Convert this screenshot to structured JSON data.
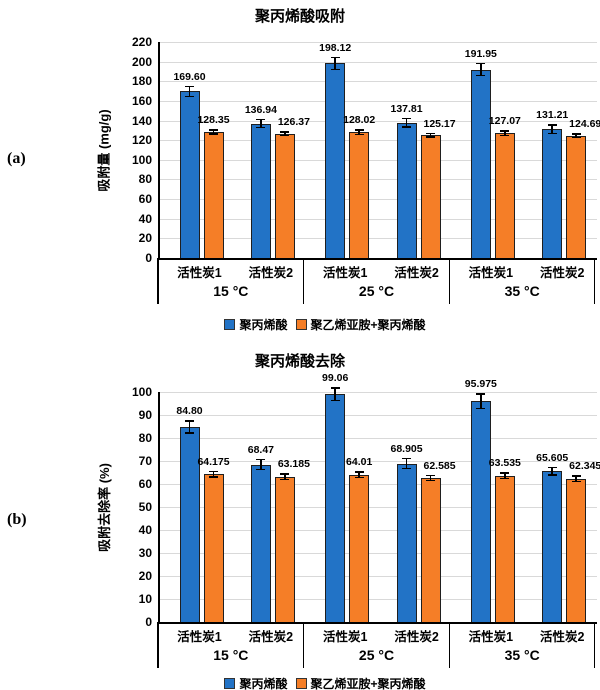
{
  "panel_labels": [
    "(a)",
    "(b)"
  ],
  "x_axis": {
    "temperature_groups": [
      "15 °C",
      "25 °C",
      "35 °C"
    ],
    "carbon_labels": [
      "活性炭1",
      "活性炭2"
    ]
  },
  "colors": {
    "blue_series": "#2273C6",
    "orange_series": "#F57E27",
    "bar_border": "#1f1f1f",
    "grid_line": "#d9d9d9",
    "axis_line": "#000000",
    "error_bar": "#000000"
  },
  "chart_data": [
    {
      "type": "bar",
      "title": "聚丙烯酸吸附",
      "ylabel": "吸附量 (mg/g)",
      "ylim": [
        0,
        220
      ],
      "ytick_step": 20,
      "grid": true,
      "legend_position": "bottom",
      "groups": [
        "15 °C",
        "25 °C",
        "35 °C"
      ],
      "group_slots": [
        "活性炭1",
        "活性炭2"
      ],
      "categories": [
        "15 °C 活性炭1",
        "15 °C 活性炭2",
        "25 °C 活性炭1",
        "25 °C 活性炭2",
        "35 °C 活性炭1",
        "35 °C 活性炭2"
      ],
      "series": [
        {
          "name": "聚丙烯酸",
          "color": "#2273C6",
          "values": [
            169.6,
            136.94,
            198.12,
            137.81,
            191.95,
            131.21
          ],
          "labels": [
            "169.60",
            "136.94",
            "198.12",
            "137.81",
            "191.95",
            "131.21"
          ],
          "errors": [
            6,
            5,
            7,
            5,
            7,
            5
          ]
        },
        {
          "name": "聚乙烯亚胺+聚丙烯酸",
          "color": "#F57E27",
          "values": [
            128.35,
            126.37,
            128.02,
            125.17,
            127.07,
            124.69
          ],
          "labels": [
            "128.35",
            "126.37",
            "128.02",
            "125.17",
            "127.07",
            "124.69"
          ],
          "errors": [
            3,
            2.5,
            3,
            2.5,
            3,
            2.5
          ]
        }
      ]
    },
    {
      "type": "bar",
      "title": "聚丙烯酸去除",
      "ylabel": "吸附去除率 (%)",
      "ylim": [
        0,
        100
      ],
      "ytick_step": 10,
      "grid": true,
      "legend_position": "bottom",
      "groups": [
        "15 °C",
        "25 °C",
        "35 °C"
      ],
      "group_slots": [
        "活性炭1",
        "活性炭2"
      ],
      "categories": [
        "15 °C 活性炭1",
        "15 °C 活性炭2",
        "25 °C 活性炭1",
        "25 °C 活性炭2",
        "35 °C 活性炭1",
        "35 °C 活性炭2"
      ],
      "series": [
        {
          "name": "聚丙烯酸",
          "color": "#2273C6",
          "values": [
            84.8,
            68.47,
            99.06,
            68.905,
            95.975,
            65.605
          ],
          "labels": [
            "84.80",
            "68.47",
            "99.06",
            "68.905",
            "95.975",
            "65.605"
          ],
          "errors": [
            3,
            2.5,
            3,
            2.5,
            3.5,
            2
          ]
        },
        {
          "name": "聚乙烯亚胺+聚丙烯酸",
          "color": "#F57E27",
          "values": [
            64.175,
            63.185,
            64.01,
            62.585,
            63.535,
            62.345
          ],
          "labels": [
            "64.175",
            "63.185",
            "64.01",
            "62.585",
            "63.535",
            "62.345"
          ],
          "errors": [
            1.5,
            1.5,
            1.5,
            1.5,
            1.5,
            1.5
          ]
        }
      ]
    }
  ]
}
